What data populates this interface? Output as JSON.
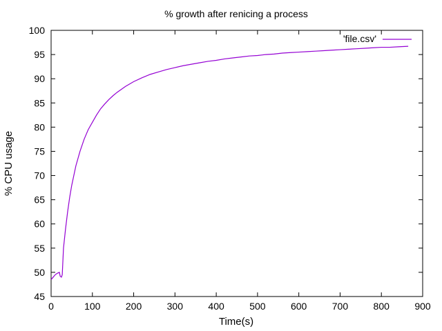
{
  "chart_data": {
    "type": "line",
    "title": "% growth after renicing a process",
    "xlabel": "Time(s)",
    "ylabel": "% CPU usage",
    "xlim": [
      0,
      900
    ],
    "ylim": [
      45,
      100
    ],
    "xticks": [
      0,
      100,
      200,
      300,
      400,
      500,
      600,
      700,
      800,
      900
    ],
    "yticks": [
      45,
      50,
      55,
      60,
      65,
      70,
      75,
      80,
      85,
      90,
      95,
      100
    ],
    "grid": false,
    "legend_position": "top-right",
    "series": [
      {
        "name": "'file.csv'",
        "color": "#9400d3",
        "x": [
          0,
          5,
          10,
          15,
          20,
          22,
          25,
          27,
          30,
          35,
          40,
          45,
          50,
          60,
          70,
          80,
          90,
          100,
          110,
          120,
          130,
          140,
          150,
          160,
          170,
          180,
          190,
          200,
          220,
          240,
          260,
          280,
          300,
          320,
          340,
          360,
          380,
          400,
          420,
          440,
          460,
          480,
          500,
          520,
          540,
          560,
          580,
          600,
          620,
          640,
          660,
          680,
          700,
          720,
          740,
          760,
          780,
          800,
          820,
          840,
          865
        ],
        "y": [
          48.5,
          49.0,
          49.5,
          49.8,
          50.0,
          49.2,
          49.0,
          49.5,
          55.0,
          59.0,
          62.5,
          65.5,
          68.0,
          72.0,
          75.0,
          77.5,
          79.5,
          81.0,
          82.5,
          83.8,
          84.8,
          85.7,
          86.5,
          87.2,
          87.8,
          88.4,
          88.9,
          89.4,
          90.2,
          90.9,
          91.4,
          91.9,
          92.3,
          92.7,
          93.0,
          93.3,
          93.6,
          93.8,
          94.1,
          94.3,
          94.5,
          94.7,
          94.8,
          95.0,
          95.1,
          95.3,
          95.4,
          95.5,
          95.6,
          95.7,
          95.8,
          95.9,
          96.0,
          96.1,
          96.2,
          96.3,
          96.4,
          96.5,
          96.5,
          96.6,
          96.7
        ]
      }
    ]
  }
}
